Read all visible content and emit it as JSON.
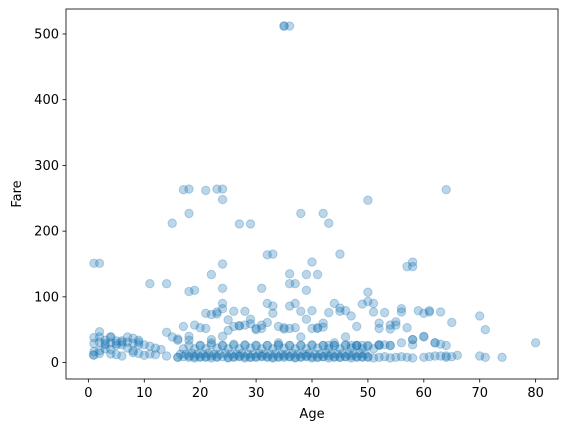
{
  "chart_data": {
    "type": "scatter",
    "title": "",
    "xlabel": "Age",
    "ylabel": "Fare",
    "xlim": [
      -4,
      84
    ],
    "ylim": [
      -25,
      538
    ],
    "xticks": [
      0,
      10,
      20,
      30,
      40,
      50,
      60,
      70,
      80
    ],
    "yticks": [
      0,
      100,
      200,
      300,
      400,
      500
    ],
    "grid": false,
    "legend": "none",
    "marker_color": "#1f77b4",
    "marker_alpha": 0.3,
    "series": [
      {
        "x": [
          35,
          36,
          35,
          17,
          18,
          18,
          21,
          23,
          24,
          24,
          27,
          29,
          38,
          42,
          43,
          50,
          64,
          24,
          15,
          33,
          1,
          2,
          45,
          11,
          14,
          18,
          36,
          39,
          40,
          41,
          22,
          24,
          31,
          32,
          36,
          37,
          24,
          57,
          58,
          58,
          1,
          2,
          4,
          4,
          8,
          3,
          0.9,
          1,
          2,
          5,
          6,
          9,
          10,
          11,
          12,
          14,
          16,
          18,
          19,
          20,
          21,
          22,
          23,
          25,
          26,
          27,
          28,
          29,
          30,
          31,
          32,
          33,
          34,
          35,
          36,
          37,
          38,
          39,
          40,
          41,
          42,
          43,
          44,
          45,
          46,
          47,
          48,
          49,
          50,
          51,
          52,
          53,
          54,
          55,
          56,
          57,
          58,
          60,
          61,
          62,
          63,
          64,
          65,
          66,
          70,
          71,
          74,
          80,
          16,
          17,
          18,
          19,
          20,
          21,
          22,
          23,
          24,
          25,
          26,
          27,
          28,
          29,
          30,
          31,
          32,
          33,
          34,
          35,
          36,
          37,
          38,
          39,
          40,
          41,
          42,
          43,
          44,
          45,
          46,
          47,
          48,
          49,
          50,
          16.5,
          17.5,
          18.5,
          19.5,
          20.5,
          21.5,
          22.5,
          23.5,
          24.5,
          25.5,
          26.5,
          27.5,
          28.5,
          29.5,
          30.5,
          31.5,
          32.5,
          33.5,
          34.5,
          35.5,
          36.5,
          37.5,
          38.5,
          39.5,
          40.5,
          41.5,
          42.5,
          43.5,
          44.5,
          45.5,
          46.5,
          47.5,
          48.5,
          49.5,
          18,
          20,
          22,
          24,
          26,
          28,
          30,
          32,
          34,
          36,
          38,
          40,
          42,
          44,
          46,
          48,
          50,
          52,
          17,
          19,
          21,
          23,
          25,
          27,
          29,
          31,
          33,
          35,
          37,
          39,
          41,
          43,
          45,
          47,
          49,
          51,
          1,
          2,
          3,
          4,
          5,
          6,
          7,
          8,
          9,
          10,
          2,
          3,
          4,
          5,
          6,
          7,
          8,
          9,
          22,
          24,
          26,
          28,
          30,
          32,
          34,
          36,
          38,
          40,
          42,
          44,
          46,
          48,
          50,
          52,
          54,
          56,
          58,
          60,
          19,
          21,
          23,
          25,
          27,
          29,
          31,
          33,
          35,
          37,
          39,
          41,
          43,
          45,
          47,
          49,
          51,
          53,
          55,
          57,
          59,
          61,
          63,
          16,
          18,
          20,
          22,
          24,
          26,
          28,
          30,
          32,
          34,
          36,
          38,
          40,
          42,
          44,
          46,
          48,
          50,
          52,
          54,
          56,
          58,
          60,
          62,
          64,
          70,
          71,
          65,
          62,
          60,
          61,
          63,
          64,
          58,
          56,
          54,
          52,
          55,
          17,
          19,
          21,
          23,
          25,
          27,
          29,
          31,
          33,
          35,
          37,
          39,
          41,
          43,
          45,
          47,
          49,
          51,
          53,
          18,
          22,
          26,
          30,
          34,
          38,
          42,
          46,
          50,
          54,
          20,
          28,
          36,
          44,
          52,
          24,
          32,
          40,
          48,
          1,
          2,
          3,
          4,
          5,
          6,
          7,
          8,
          9,
          11,
          12,
          13,
          14,
          15,
          16
        ],
        "y": [
          512,
          512,
          512,
          263,
          264,
          227,
          262,
          264,
          264,
          248,
          211,
          211,
          227,
          227,
          212,
          247,
          263,
          150,
          212,
          165,
          151,
          151,
          165,
          120,
          120,
          108,
          135,
          134,
          153,
          134,
          134,
          113,
          113,
          164,
          120,
          120,
          90,
          146,
          153,
          146,
          17,
          18,
          20,
          13,
          15,
          21,
          12,
          11,
          14,
          12,
          10,
          14,
          11,
          13,
          12,
          10,
          8,
          8,
          7,
          9,
          8,
          7,
          8,
          7,
          8,
          9,
          7,
          8,
          8,
          9,
          8,
          7,
          8,
          8,
          9,
          7,
          8,
          9,
          7,
          8,
          9,
          7,
          8,
          8,
          9,
          7,
          8,
          9,
          8,
          7,
          8,
          9,
          7,
          8,
          9,
          8,
          7,
          8,
          9,
          10,
          10,
          8,
          9,
          11,
          10,
          8,
          8,
          30,
          8,
          9,
          10,
          9,
          8,
          9,
          10,
          9,
          9,
          8,
          9,
          10,
          9,
          8,
          9,
          10,
          9,
          8,
          9,
          10,
          9,
          8,
          9,
          10,
          9,
          8,
          9,
          10,
          9,
          8,
          9,
          10,
          9,
          8,
          9,
          13,
          13,
          14,
          13,
          13,
          14,
          13,
          13,
          14,
          13,
          13,
          14,
          13,
          13,
          14,
          13,
          13,
          14,
          13,
          13,
          14,
          13,
          13,
          14,
          13,
          13,
          14,
          13,
          13,
          14,
          13,
          13,
          14,
          13,
          26,
          26,
          27,
          26,
          26,
          27,
          26,
          26,
          27,
          26,
          26,
          27,
          26,
          26,
          27,
          26,
          26,
          27,
          21,
          21,
          21,
          22,
          21,
          21,
          22,
          21,
          21,
          22,
          21,
          21,
          22,
          21,
          21,
          22,
          21,
          21,
          29,
          31,
          27,
          39,
          33,
          31,
          39,
          37,
          31,
          27,
          39,
          34,
          39,
          26,
          33,
          31,
          29,
          27,
          35,
          40,
          55,
          57,
          52,
          61,
          55,
          52,
          78,
          79,
          54,
          90,
          79,
          55,
          93,
          52,
          57,
          77,
          35,
          40,
          57,
          52,
          77,
          49,
          56,
          59,
          52,
          86,
          53,
          53,
          66,
          52,
          76,
          83,
          71,
          89,
          77,
          76,
          62,
          53,
          79,
          77,
          77,
          34,
          40,
          53,
          73,
          82,
          78,
          78,
          50,
          90,
          30,
          86,
          39,
          52,
          60,
          30,
          39,
          26,
          107,
          60,
          26,
          82,
          35,
          39,
          30,
          26,
          71,
          50,
          61,
          30,
          75,
          79,
          28,
          10,
          27,
          30,
          51,
          27,
          57,
          55,
          110,
          75,
          74,
          65,
          56,
          66,
          57,
          75,
          51,
          90,
          110,
          53,
          26,
          78,
          26,
          26,
          90,
          27,
          34,
          30,
          28,
          26,
          26,
          26,
          26,
          26,
          25,
          26,
          26,
          26,
          26,
          26,
          26,
          26,
          26,
          26,
          26,
          38,
          47,
          29,
          30,
          29,
          27,
          22,
          18,
          34,
          25,
          22,
          20,
          46,
          39,
          36
        ]
      }
    ]
  }
}
